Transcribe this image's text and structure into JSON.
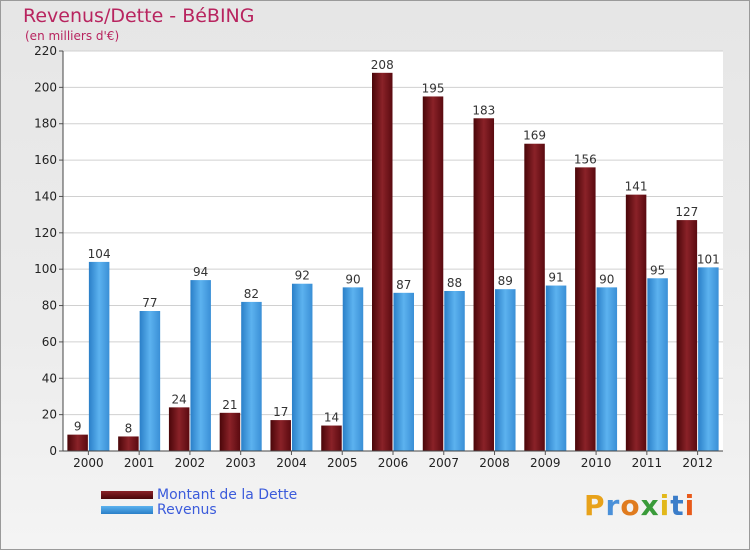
{
  "chart_data": {
    "type": "bar",
    "title": "Revenus/Dette - BéBING",
    "subtitle": "(en milliers d'€)",
    "categories": [
      "2000",
      "2001",
      "2002",
      "2003",
      "2004",
      "2005",
      "2006",
      "2007",
      "2008",
      "2009",
      "2010",
      "2011",
      "2012"
    ],
    "series": [
      {
        "name": "Montant de la Dette",
        "color": "#6d0f16",
        "values": [
          9,
          8,
          24,
          21,
          17,
          14,
          208,
          195,
          183,
          169,
          156,
          141,
          127
        ]
      },
      {
        "name": "Revenus",
        "color": "#3f9be0",
        "values": [
          104,
          77,
          94,
          82,
          92,
          90,
          87,
          88,
          89,
          91,
          90,
          95,
          101
        ]
      }
    ],
    "ylim": [
      0,
      220
    ],
    "yticks": [
      0,
      20,
      40,
      60,
      80,
      100,
      120,
      140,
      160,
      180,
      200,
      220
    ],
    "xlabel": "",
    "ylabel": "",
    "grid": true,
    "legend_position": "bottom-left"
  },
  "logo": {
    "text": "Proxiti",
    "colors": [
      "#e8a21a",
      "#4a90d9",
      "#e07b1e",
      "#3a9b3a",
      "#e2b81a",
      "#3b7dc9",
      "#e85a1a"
    ]
  }
}
